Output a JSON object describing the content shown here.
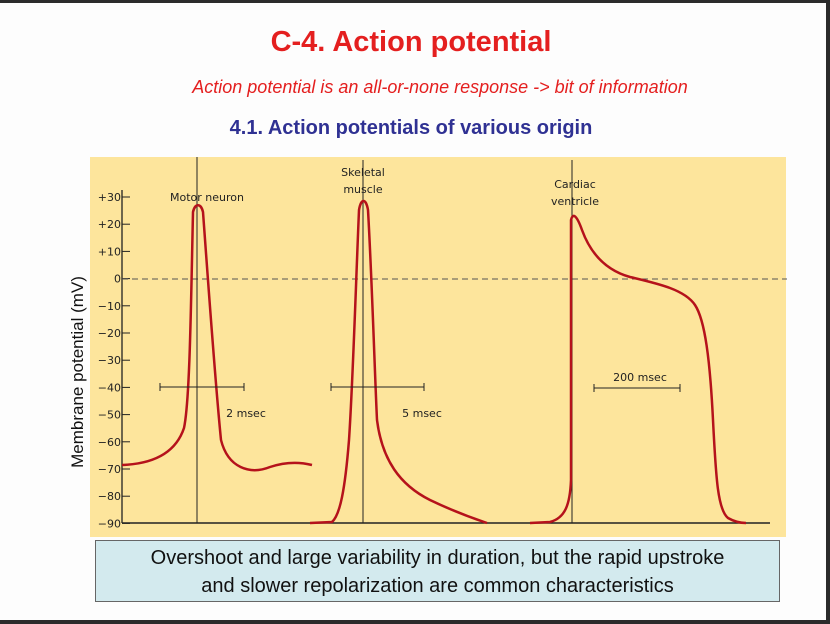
{
  "slide": {
    "title": "C-4. Action potential",
    "subtitle": "Action potential is an all-or-none response -> bit of information",
    "section_title": "4.1. Action potentials of various origin",
    "caption_line1": "Overshoot and large variability in duration, but the rapid upstroke",
    "caption_line2": "and slower repolarization are common characteristics"
  },
  "figure": {
    "y_axis_label": "Membrane potential (mV)",
    "y_ticks": [
      "+30",
      "+20",
      "+10",
      "0",
      "−10",
      "−20",
      "−30",
      "−40",
      "−50",
      "−60",
      "−70",
      "−80",
      "−90"
    ],
    "traces": [
      {
        "label_line1": "Motor neuron",
        "label_line2": "",
        "scale_bar": "2 msec"
      },
      {
        "label_line1": "Skeletal",
        "label_line2": "muscle",
        "scale_bar": "5 msec"
      },
      {
        "label_line1": "Cardiac",
        "label_line2": "ventricle",
        "scale_bar": "200 msec"
      }
    ],
    "colors": {
      "trace": "#b5121b",
      "panel": "#fde59c",
      "caption_bg": "#d3eaee",
      "title": "#e41f1f",
      "section": "#2f3193"
    }
  }
}
